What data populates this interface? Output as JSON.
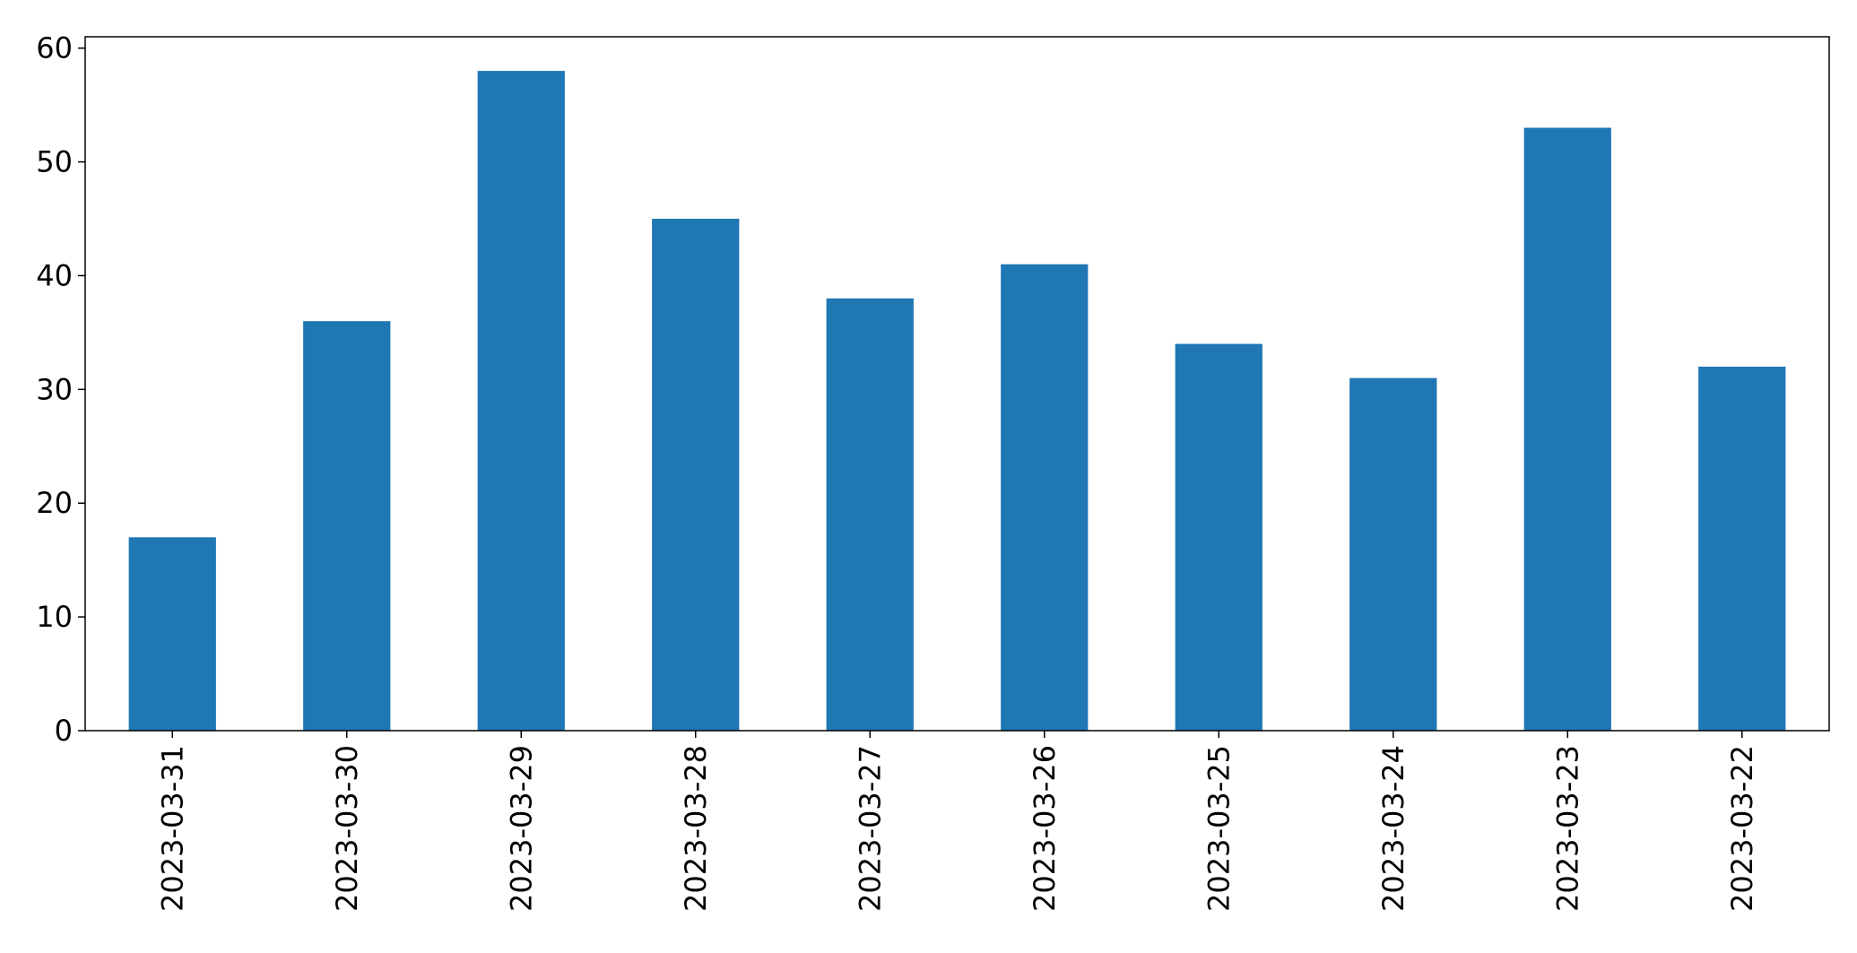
{
  "chart_data": {
    "type": "bar",
    "categories": [
      "2023-03-31",
      "2023-03-30",
      "2023-03-29",
      "2023-03-28",
      "2023-03-27",
      "2023-03-26",
      "2023-03-25",
      "2023-03-24",
      "2023-03-23",
      "2023-03-22"
    ],
    "values": [
      17,
      36,
      58,
      45,
      38,
      41,
      34,
      31,
      53,
      32
    ],
    "title": "",
    "xlabel": "",
    "ylabel": "",
    "ylim": [
      0,
      61
    ],
    "yticks": [
      0,
      10,
      20,
      30,
      40,
      50,
      60
    ],
    "grid": false,
    "bar_color": "#1f77b4",
    "axis_color": "#000000"
  }
}
